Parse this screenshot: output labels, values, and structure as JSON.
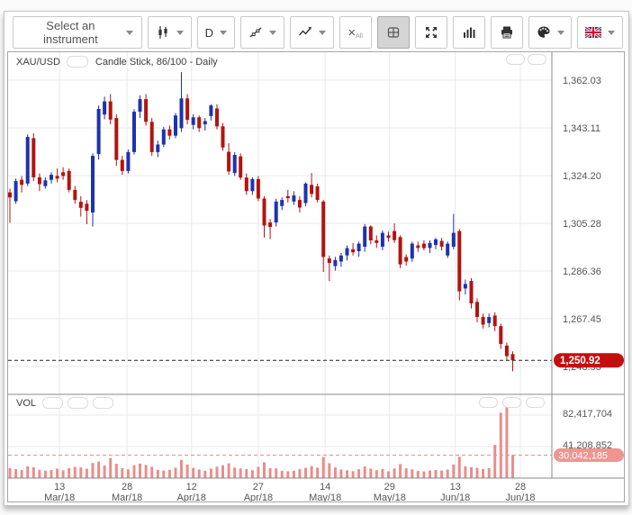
{
  "toolbar": {
    "instrument_placeholder": "Select an instrument",
    "timeframe_label": "D",
    "remove_all_x": "×",
    "remove_all_sub": "All",
    "icons": [
      "candlestick-chart-type-icon",
      "timeframe-D",
      "trendline-draw-icon",
      "indicators-icon",
      "remove-all-icon",
      "grid-layout-icon",
      "fullscreen-icon",
      "volume-histogram-icon",
      "printer-icon",
      "palette-icon",
      "uk-flag-icon"
    ]
  },
  "chart": {
    "symbol": "XAU/USD",
    "description": "Candle Stick, 86/100 - Daily",
    "price_ticks": [
      "1,362.03",
      "1,343.11",
      "1,324.20",
      "1,305.28",
      "1,286.36",
      "1,267.45",
      "1,248.53"
    ],
    "last_price": "1,250.92"
  },
  "volume": {
    "label": "VOL",
    "ticks": [
      "82,417,704",
      "41,208,852"
    ],
    "last_volume": "30,042,185"
  },
  "chart_data": {
    "type": "candlestick",
    "title": "XAU/USD Candle Stick, 86/100 - Daily",
    "panes": [
      "price",
      "volume"
    ],
    "y_axis": {
      "ticks": [
        1362.03,
        1343.11,
        1324.2,
        1305.28,
        1286.36,
        1267.45,
        1248.53
      ],
      "last_price": 1250.92
    },
    "x_ticks": [
      {
        "day": "13",
        "month": "Mar/18",
        "i": 8.4
      },
      {
        "day": "28",
        "month": "Mar/18",
        "i": 19.8
      },
      {
        "day": "12",
        "month": "Apr/18",
        "i": 30.7
      },
      {
        "day": "27",
        "month": "Apr/18",
        "i": 42
      },
      {
        "day": "14",
        "month": "May/18",
        "i": 53.3
      },
      {
        "day": "29",
        "month": "May/18",
        "i": 64.2
      },
      {
        "day": "13",
        "month": "Jun/18",
        "i": 75.3
      },
      {
        "day": "28",
        "month": "Jun/18",
        "i": 86.3
      }
    ],
    "candles": {
      "open": [
        1317.5,
        1314,
        1322.5,
        1321,
        1339,
        1323.5,
        1320,
        1322.5,
        1324,
        1325.5,
        1326,
        1318.5,
        1313.8,
        1313,
        1309.5,
        1332.7,
        1348.4,
        1353.6,
        1347,
        1330.4,
        1326,
        1333.5,
        1349.5,
        1354.5,
        1345.5,
        1333.5,
        1336.5,
        1342.5,
        1340,
        1343,
        1354.8,
        1344.3,
        1347.3,
        1344.5,
        1347.8,
        1350.8,
        1343.7,
        1333.6,
        1325.2,
        1331.8,
        1323.4,
        1318,
        1322.8,
        1315.1,
        1305.6,
        1305.6,
        1312.1,
        1316,
        1313.9,
        1314.5,
        1313.3,
        1320.5,
        1319.9,
        1313.9,
        1291.3,
        1288.3,
        1290.1,
        1292.5,
        1295,
        1294.2,
        1296,
        1304,
        1298.5,
        1296,
        1300.5,
        1302.2,
        1299.8,
        1291.9,
        1291.3,
        1296.5,
        1297.2,
        1295.5,
        1296.6,
        1298.3,
        1292.5,
        1296,
        1302.2,
        1279.4,
        1282.4,
        1274.1,
        1268.1,
        1265.7,
        1268.7,
        1264.5,
        1256.8,
        1253.4
      ],
      "high": [
        1319,
        1323,
        1324,
        1340.5,
        1341,
        1325,
        1323.5,
        1325.5,
        1327,
        1327.5,
        1327,
        1320,
        1316,
        1314.5,
        1333,
        1352,
        1355.5,
        1356.5,
        1348.5,
        1332,
        1334.5,
        1350.5,
        1356,
        1356.5,
        1347,
        1338,
        1343.5,
        1344,
        1349,
        1365.2,
        1356.5,
        1348.5,
        1348,
        1347,
        1352.5,
        1352.5,
        1345,
        1337,
        1333.5,
        1333,
        1325,
        1323.5,
        1324,
        1316,
        1307,
        1315,
        1315.5,
        1318.5,
        1318,
        1316,
        1321.5,
        1325.2,
        1321,
        1314.5,
        1292.5,
        1292,
        1293.5,
        1296.5,
        1297.5,
        1298,
        1305,
        1304.5,
        1300.5,
        1302.5,
        1302,
        1305.2,
        1300.5,
        1293,
        1298,
        1298,
        1298.5,
        1298.5,
        1299.5,
        1299.5,
        1298,
        1309,
        1303,
        1283,
        1283.5,
        1275.5,
        1269.5,
        1269.5,
        1270,
        1265.5,
        1258,
        1254.5
      ],
      "low": [
        1305.5,
        1313,
        1317.5,
        1320,
        1322,
        1318,
        1319,
        1321,
        1321.5,
        1322.5,
        1317.5,
        1313,
        1307.9,
        1304.9,
        1304,
        1330.5,
        1346.5,
        1344.5,
        1328,
        1324.5,
        1325,
        1332.5,
        1347,
        1344,
        1332,
        1331.5,
        1335.5,
        1338.5,
        1339,
        1341.5,
        1344.5,
        1342.5,
        1341.5,
        1342,
        1346,
        1342.5,
        1334,
        1324.5,
        1324,
        1322.5,
        1316.5,
        1316.5,
        1314,
        1299.6,
        1299,
        1304,
        1310.5,
        1313.5,
        1312.5,
        1309.5,
        1312,
        1315.5,
        1313.5,
        1286,
        1282.4,
        1286.5,
        1288,
        1290.5,
        1292.5,
        1292,
        1294,
        1297,
        1295.5,
        1294.5,
        1298,
        1297.5,
        1287.5,
        1288.5,
        1290,
        1294,
        1294.5,
        1293.5,
        1295,
        1294.5,
        1291.5,
        1295,
        1274.7,
        1277,
        1271.5,
        1266,
        1263.5,
        1264,
        1262.5,
        1255.5,
        1251,
        1246.6
      ],
      "close": [
        1315.5,
        1322,
        1320.5,
        1339.5,
        1323.5,
        1320.8,
        1322.3,
        1324.5,
        1323,
        1324,
        1318.5,
        1314.5,
        1311.4,
        1310.2,
        1332,
        1350.6,
        1353.6,
        1346.4,
        1330.4,
        1326,
        1333.5,
        1349.5,
        1354.5,
        1345.5,
        1333.5,
        1336.5,
        1342.5,
        1340,
        1348,
        1354.8,
        1346.3,
        1347.3,
        1343,
        1345.8,
        1352,
        1343.7,
        1335.3,
        1325.8,
        1332.4,
        1323.4,
        1318,
        1322.8,
        1315.1,
        1304.4,
        1303.8,
        1313.9,
        1314.5,
        1315.2,
        1316.3,
        1311.5,
        1321,
        1316.9,
        1314.5,
        1291.9,
        1289.5,
        1290.7,
        1292.5,
        1295.4,
        1293.8,
        1297.2,
        1304,
        1298.5,
        1297.5,
        1301.5,
        1299.5,
        1298.6,
        1289,
        1290.1,
        1297.2,
        1295.5,
        1295.4,
        1297.5,
        1298.9,
        1296,
        1297.2,
        1301.5,
        1278.3,
        1281.2,
        1273.5,
        1268.1,
        1265.1,
        1268.1,
        1264.5,
        1257.4,
        1252.6,
        1250.92
      ]
    },
    "volume": {
      "values": [
        13200000,
        11800000,
        10500000,
        15400000,
        14100000,
        10900000,
        9800000,
        10600000,
        12300000,
        10100000,
        12800000,
        14600000,
        13900000,
        12200000,
        19800000,
        21500000,
        16400000,
        26300000,
        18700000,
        12900000,
        11400000,
        16800000,
        18900000,
        17200000,
        14800000,
        10700000,
        9900000,
        10800000,
        13600000,
        23900000,
        17800000,
        13400000,
        11200000,
        9600000,
        12400000,
        14900000,
        16700000,
        19300000,
        13800000,
        12600000,
        11900000,
        10400000,
        14700000,
        20600000,
        13100000,
        12700000,
        9400000,
        8900000,
        9700000,
        11600000,
        13300000,
        15800000,
        13700000,
        27600000,
        19400000,
        13900000,
        11300000,
        10200000,
        9100000,
        11700000,
        15200000,
        12400000,
        10300000,
        11900000,
        8800000,
        12600000,
        18400000,
        12800000,
        11400000,
        9300000,
        8700000,
        9900000,
        10600000,
        9800000,
        11200000,
        17600000,
        27900000,
        15300000,
        14200000,
        13400000,
        11800000,
        12900000,
        43600000,
        85400000,
        101900000,
        30042185
      ],
      "ticks": [
        82417704,
        41208852
      ],
      "last": 30042185
    },
    "colors": {
      "up": "#1d33ae",
      "down": "#b2140f",
      "volume": "#e98e8a",
      "price_badge": "#c40f0f",
      "volume_badge": "#f09492",
      "grid": "#e9e9e9",
      "pane_border": "#888888",
      "axis_text": "#555555",
      "last_price_line": "#222222"
    }
  }
}
